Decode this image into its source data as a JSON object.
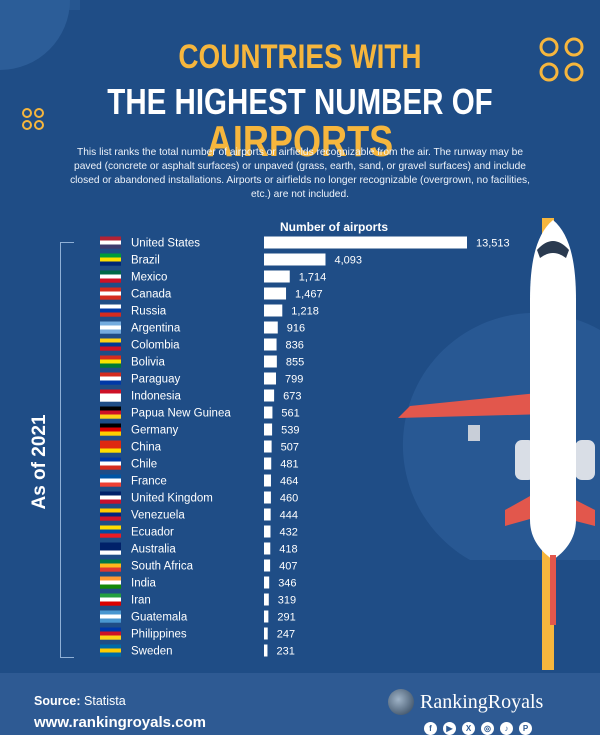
{
  "title": {
    "line1": "COUNTRIES WITH",
    "line2_prefix": "THE HIGHEST NUMBER OF",
    "line2_highlight": "AIRPORTS"
  },
  "description": "This list ranks the total number of airports or airfields recognizable from the air. The runway may be paved (concrete or asphalt surfaces) or unpaved (grass, earth, sand, or gravel surfaces) and include closed or abandoned installations. Airports or airfields no longer recognizable (overgrown, no facilities, etc.) are not included.",
  "side_label": "As of 2021",
  "colors": {
    "background": "#1f4d86",
    "accent": "#f6b63d",
    "bar": "#ffffff",
    "footer": "#2e5a93",
    "plane_wing": "#e2574c"
  },
  "chart_data": {
    "type": "bar",
    "orientation": "horizontal",
    "xlabel": "Number of airports",
    "categories": [
      "United States",
      "Brazil",
      "Mexico",
      "Canada",
      "Russia",
      "Argentina",
      "Colombia",
      "Bolivia",
      "Paraguay",
      "Indonesia",
      "Papua New Guinea",
      "Germany",
      "China",
      "Chile",
      "France",
      "United Kingdom",
      "Venezuela",
      "Ecuador",
      "Australia",
      "South Africa",
      "India",
      "Iran",
      "Guatemala",
      "Philippines",
      "Sweden"
    ],
    "values": [
      13513,
      4093,
      1714,
      1467,
      1218,
      916,
      836,
      855,
      799,
      673,
      561,
      539,
      507,
      481,
      464,
      460,
      444,
      432,
      418,
      407,
      346,
      319,
      291,
      247,
      231
    ],
    "value_labels": [
      "13,513",
      "4,093",
      "1,714",
      "1,467",
      "1,218",
      "916",
      "836",
      "855",
      "799",
      "673",
      "561",
      "539",
      "507",
      "481",
      "464",
      "460",
      "444",
      "432",
      "418",
      "407",
      "346",
      "319",
      "291",
      "247",
      "231"
    ],
    "xlim": [
      0,
      13513
    ],
    "grid": false,
    "legend": "none"
  },
  "footer": {
    "source_label": "Source:",
    "source_value": "Statista",
    "website": "www.rankingroyals.com",
    "brand": "RankingRoyals",
    "socials": [
      {
        "icon": "facebook-icon",
        "glyph": "f"
      },
      {
        "icon": "youtube-icon",
        "glyph": "▶"
      },
      {
        "icon": "x-icon",
        "glyph": "X"
      },
      {
        "icon": "instagram-icon",
        "glyph": "◎"
      },
      {
        "icon": "tiktok-icon",
        "glyph": "♪"
      },
      {
        "icon": "pinterest-icon",
        "glyph": "P"
      }
    ]
  }
}
